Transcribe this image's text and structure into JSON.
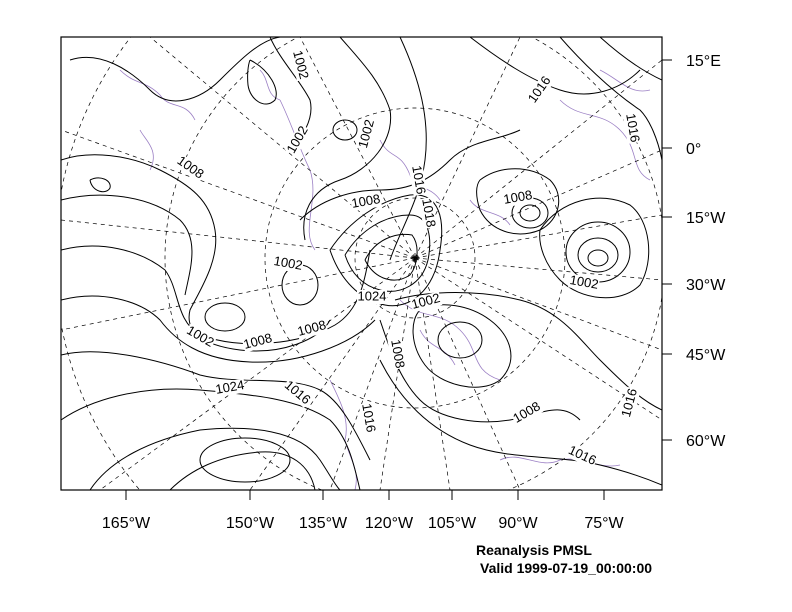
{
  "map": {
    "caption_line1": "Reanalysis PMSL",
    "caption_line2": "Valid 1999-07-19_00:00:00",
    "right_axis_labels": [
      "15°E",
      "0°",
      "15°W",
      "30°W",
      "45°W",
      "60°W"
    ],
    "bottom_axis_labels": [
      "165°W",
      "150°W",
      "135°W",
      "120°W",
      "105°W",
      "90°W",
      "75°W"
    ],
    "contour_labels": [
      "1002",
      "1002",
      "1002",
      "1016",
      "1016",
      "1008",
      "1016",
      "1008",
      "1018",
      "1008",
      "1002",
      "1024",
      "1002",
      "1002",
      "1002",
      "1008",
      "1008",
      "1008",
      "1024",
      "1016",
      "1016",
      "1008",
      "1016",
      "1016"
    ],
    "colors": {
      "contour": "#000000",
      "coastline": "#9b7fc4",
      "grid": "#000000"
    }
  }
}
